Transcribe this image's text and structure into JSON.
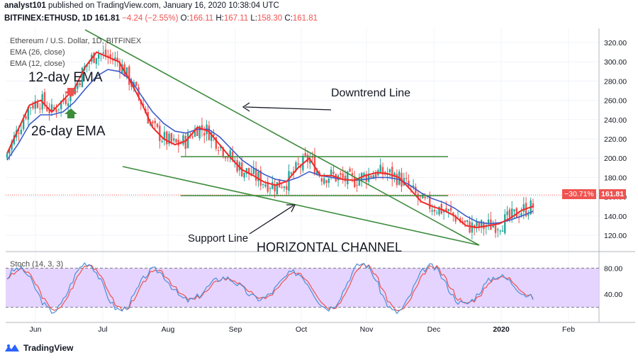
{
  "header": {
    "publisher": "analyst101",
    "published_text": "published on TradingView.com, January 16, 2020 10:38:04 UTC",
    "symbol": "BITFINEX:ETHUSD, 1D",
    "last": "161.81",
    "change": "−4.24 (−2.55%)",
    "o_label": "O:",
    "o_value": "166.11",
    "h_label": "H:",
    "h_value": "167.11",
    "l_label": "L:",
    "l_value": "158.30",
    "c_label": "C:",
    "c_value": "161.81"
  },
  "legend": {
    "title": "Ethereum / U.S. Dollar, 1D, BITFINEX",
    "ema26": "EMA (26, close)",
    "ema12": "EMA (12, close)",
    "stoch": "Stoch (14, 3, 3)"
  },
  "annotations": {
    "ema12": "12-day EMA",
    "ema26": "26-day EMA",
    "downtrend": "Downtrend Line",
    "support": "Support Line",
    "channel": "HORIZONTAL CHANNEL"
  },
  "price_tag": {
    "pct": "−30.71%",
    "price": "161.81"
  },
  "branding": "TradingView",
  "colors": {
    "up": "#26a69a",
    "down": "#ef5350",
    "ema12": "#ef2a2a",
    "ema26": "#3d5cc9",
    "trend": "#3c8c3c",
    "stoch_bg": "#e1ccff",
    "stoch_k": "#4a90d9",
    "stoch_d": "#ef5350",
    "last_line": "#ef5350",
    "arrow_green": "#3c8c3c",
    "arrow_red": "#ef5350"
  },
  "chart_data": {
    "type": "candlestick",
    "title": "Ethereum / U.S. Dollar, 1D, BITFINEX",
    "x_ticks": [
      "Jun",
      "Jul",
      "Aug",
      "Sep",
      "Oct",
      "Nov",
      "Dec",
      "2020",
      "Feb"
    ],
    "y_ticks": [
      120,
      140,
      160,
      180,
      200,
      220,
      240,
      260,
      280,
      300,
      320
    ],
    "ylim": [
      100,
      335
    ],
    "last_price": 161.81,
    "ema_points": [
      {
        "name": "EMA (12, close)",
        "values": [
          205,
          230,
          255,
          260,
          248,
          260,
          272,
          295,
          310,
          305,
          300,
          280,
          258,
          232,
          220,
          214,
          218,
          232,
          228,
          214,
          200,
          188,
          182,
          175,
          172,
          176,
          190,
          200,
          182,
          182,
          178,
          177,
          182,
          185,
          184,
          180,
          168,
          155,
          150,
          146,
          140,
          130,
          128,
          130,
          132,
          138,
          146,
          150
        ]
      },
      {
        "name": "EMA (26, close)",
        "values": [
          198,
          215,
          235,
          245,
          245,
          248,
          258,
          272,
          285,
          292,
          290,
          282,
          265,
          248,
          236,
          228,
          226,
          230,
          230,
          222,
          210,
          198,
          190,
          183,
          178,
          176,
          180,
          186,
          182,
          180,
          178,
          177,
          178,
          180,
          180,
          178,
          172,
          164,
          158,
          154,
          148,
          140,
          134,
          132,
          133,
          136,
          140,
          145
        ]
      }
    ],
    "stoch_levels": [
      20,
      80
    ],
    "stoch_ticks": [
      40,
      80
    ],
    "horizontal_channel": [
      160,
      200
    ]
  }
}
